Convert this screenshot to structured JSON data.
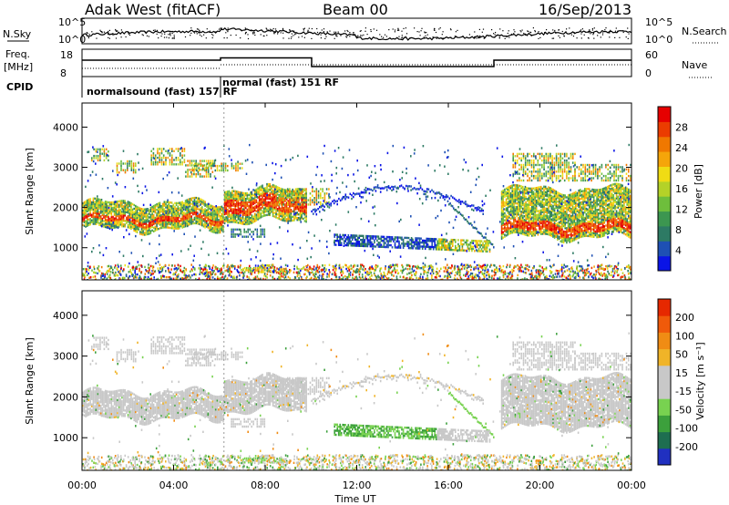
{
  "header": {
    "station": "Adak West (fitACF)",
    "beam": "Beam 00",
    "date": "16/Sep/2013"
  },
  "nsky_panel": {
    "left_label": "N.Sky",
    "right_label": "N.Search",
    "left_ticks": [
      "10^5",
      "10^0"
    ],
    "right_ticks": [
      "10^5",
      "10^0"
    ]
  },
  "freq_panel": {
    "left_label_1": "Freq.",
    "left_label_2": "[MHz]",
    "cpid_label": "CPID",
    "right_label": "Nave",
    "left_ticks": [
      "18",
      "8"
    ],
    "right_ticks": [
      "60",
      "0"
    ],
    "cpid_1": "normalsound (fast) 157 RF",
    "cpid_2": "normal (fast) 151 RF"
  },
  "chart_data": [
    {
      "type": "heatmap",
      "name": "Power",
      "ylabel": "Slant Range [km]",
      "ylim": [
        200,
        4600
      ],
      "xlim": [
        0,
        24
      ],
      "y_ticks": [
        "4000",
        "3000",
        "2000",
        "1000"
      ],
      "colorbar": {
        "label": "Power [dB]",
        "ticks": [
          "28",
          "24",
          "20",
          "16",
          "12",
          "8",
          "4"
        ],
        "colors": [
          "#0a14e6",
          "#1e50b4",
          "#2d7a64",
          "#3c9650",
          "#6ebe3c",
          "#b4d228",
          "#f0dc14",
          "#f5a50a",
          "#f07800",
          "#eb3c00",
          "#e60000"
        ]
      },
      "bands": [
        {
          "t0": 0.0,
          "t1": 6.2,
          "r0": 1500,
          "r1": 2150,
          "core": [
            1650,
            1800
          ]
        },
        {
          "t0": 6.2,
          "t1": 9.8,
          "r0": 1700,
          "r1": 2500,
          "core": [
            1900,
            2250
          ]
        },
        {
          "t0": 18.3,
          "t1": 24.0,
          "r0": 1300,
          "r1": 2500,
          "core": [
            1400,
            1650
          ]
        }
      ]
    },
    {
      "type": "heatmap",
      "name": "Velocity",
      "ylabel": "Slant Range [km]",
      "ylim": [
        200,
        4600
      ],
      "xlim": [
        0,
        24
      ],
      "y_ticks": [
        "4000",
        "3000",
        "2000",
        "1000"
      ],
      "x_ticks": [
        "00:00",
        "04:00",
        "08:00",
        "12:00",
        "16:00",
        "20:00",
        "00:00"
      ],
      "xlabel": "Time UT",
      "colorbar": {
        "label": "Velocity [m s⁻¹]",
        "ticks": [
          "200",
          "100",
          "50",
          "15",
          "-15",
          "-50",
          "-100",
          "-200"
        ],
        "colors": [
          "#2030c0",
          "#1e6e50",
          "#3ca03c",
          "#78d250",
          "#c8c8c8",
          "#c8c8c8",
          "#f0b428",
          "#f08c14",
          "#f05a0a",
          "#e62800"
        ]
      }
    }
  ]
}
